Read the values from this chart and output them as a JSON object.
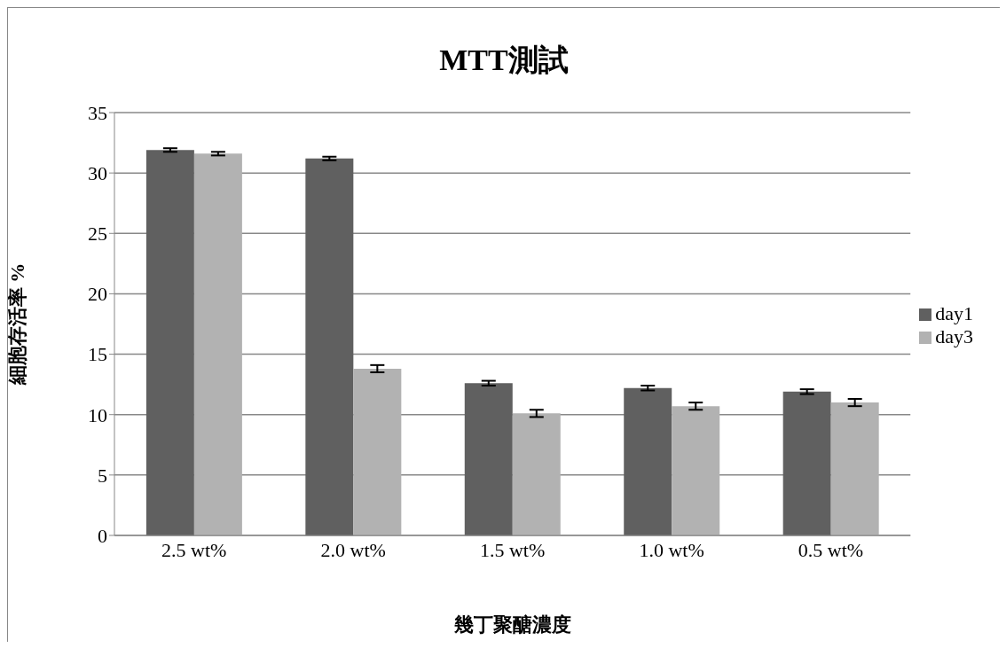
{
  "chart_data": {
    "type": "bar",
    "title": "MTT測試",
    "xlabel": "幾丁聚醣濃度",
    "ylabel": "細胞存活率 %",
    "categories": [
      "2.5 wt%",
      "2.0 wt%",
      "1.5 wt%",
      "1.0 wt%",
      "0.5 wt%"
    ],
    "series": [
      {
        "name": "day1",
        "color": "#606060",
        "values": [
          31.9,
          31.2,
          12.6,
          12.2,
          11.9
        ],
        "errors": [
          0.15,
          0.15,
          0.2,
          0.2,
          0.2
        ]
      },
      {
        "name": "day3",
        "color": "#b2b2b2",
        "values": [
          31.6,
          13.8,
          10.1,
          10.7,
          11.0
        ],
        "errors": [
          0.15,
          0.3,
          0.3,
          0.3,
          0.3
        ]
      }
    ],
    "ylim": [
      0,
      35
    ],
    "yticks": [
      0,
      5,
      10,
      15,
      20,
      25,
      30,
      35
    ],
    "grid": "y",
    "legend": "right"
  }
}
